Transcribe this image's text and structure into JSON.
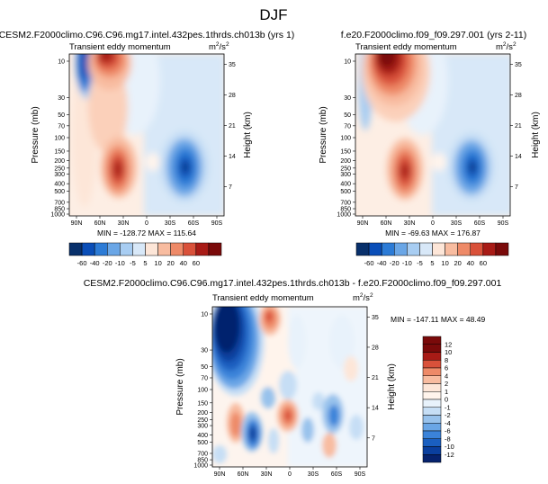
{
  "page_title": "DJF",
  "chart_data": [
    {
      "type": "heatmap",
      "case_title": "CESM2.F2000climo.C96.C96.mg17.intel.432pes.1thrds.ch013b (yrs 1)",
      "subtitle": "Transient eddy momentum",
      "units_base": "m",
      "units_sup1": "2",
      "units_mid": "/s",
      "units_sup2": "2",
      "ylabel": "Pressure (mb)",
      "ylabel_right": "Height (km)",
      "x_tick_labels": [
        "90N",
        "60N",
        "30N",
        "0",
        "30S",
        "60S",
        "90S"
      ],
      "y_tick_labels": [
        "10",
        "30",
        "50",
        "70",
        "100",
        "150",
        "200",
        "250",
        "300",
        "400",
        "500",
        "700",
        "850",
        "1000"
      ],
      "right_tick_labels": [
        "35",
        "28",
        "21",
        "14",
        "7"
      ],
      "stats": "MIN = -128.72   MAX = 115.64",
      "min": -128.72,
      "max": 115.64,
      "colorbar_labels": [
        "-60",
        "-40",
        "-20",
        "-10",
        "-5",
        "5",
        "10",
        "20",
        "40",
        "60"
      ]
    },
    {
      "type": "heatmap",
      "case_title": "f.e20.F2000climo.f09_f09.297.001 (yrs 2-11)",
      "subtitle": "Transient eddy momentum",
      "units_base": "m",
      "units_sup1": "2",
      "units_mid": "/s",
      "units_sup2": "2",
      "ylabel": "Pressure (mb)",
      "ylabel_right": "Height (km)",
      "x_tick_labels": [
        "90N",
        "60N",
        "30N",
        "0",
        "30S",
        "60S",
        "90S"
      ],
      "y_tick_labels": [
        "10",
        "30",
        "50",
        "70",
        "100",
        "150",
        "200",
        "250",
        "300",
        "400",
        "500",
        "700",
        "850",
        "1000"
      ],
      "right_tick_labels": [
        "35",
        "28",
        "21",
        "14",
        "7"
      ],
      "stats": "MIN = -69.63   MAX = 176.87",
      "min": -69.63,
      "max": 176.87,
      "colorbar_labels": [
        "-60",
        "-40",
        "-20",
        "-10",
        "-5",
        "5",
        "10",
        "20",
        "40",
        "60"
      ]
    },
    {
      "type": "heatmap",
      "case_title": "CESM2.F2000climo.C96.C96.mg17.intel.432pes.1thrds.ch013b - f.e20.F2000climo.f09_f09.297.001",
      "subtitle": "Transient eddy momentum",
      "units_base": "m",
      "units_sup1": "2",
      "units_mid": "/s",
      "units_sup2": "2",
      "ylabel": "Pressure (mb)",
      "ylabel_right": "Height (km)",
      "x_tick_labels": [
        "90N",
        "60N",
        "30N",
        "0",
        "30S",
        "60S",
        "90S"
      ],
      "y_tick_labels": [
        "10",
        "30",
        "50",
        "70",
        "100",
        "150",
        "200",
        "250",
        "300",
        "400",
        "500",
        "700",
        "850",
        "1000"
      ],
      "right_tick_labels": [
        "35",
        "28",
        "21",
        "14",
        "7"
      ],
      "stats": "MIN = -147.11   MAX =  48.49",
      "min": -147.11,
      "max": 48.49,
      "colorbar_labels": [
        "12",
        "10",
        "8",
        "6",
        "4",
        "2",
        "1",
        "0",
        "-1",
        "-2",
        "-4",
        "-6",
        "-8",
        "-10",
        "-12"
      ]
    }
  ],
  "colors": {
    "palette_main": [
      "#08306b",
      "#0a4eb8",
      "#2c7bd6",
      "#6aa6e6",
      "#a8cdf2",
      "#d8e8f8",
      "#fde6d8",
      "#f8bca0",
      "#ee8a68",
      "#d9513a",
      "#a81b16",
      "#7a0a0a"
    ],
    "palette_diff": [
      "#7a0a0a",
      "#a81b16",
      "#d9513a",
      "#ee8a68",
      "#f8bca0",
      "#fde6d8",
      "#fff4ec",
      "#e8f2fb",
      "#c6def5",
      "#98c2ec",
      "#6aa6e6",
      "#3b83d9",
      "#1a5fc0",
      "#0a3f9e",
      "#06226e"
    ]
  }
}
